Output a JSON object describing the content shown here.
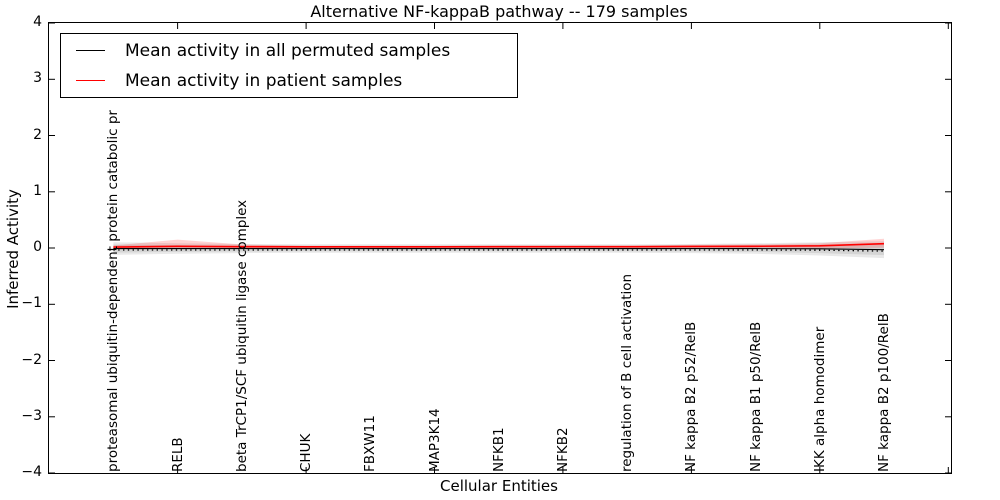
{
  "title": "Alternative NF-kappaB pathway -- 179 samples",
  "axes": {
    "ylabel": "Inferred Activity",
    "xlabel": "Cellular Entities",
    "ytick_values": [
      4,
      3,
      2,
      1,
      0,
      -1,
      -2,
      -3,
      -4
    ],
    "xtick_data_positions": [
      1,
      3,
      5,
      7,
      9,
      11,
      13
    ]
  },
  "legend": {
    "items": [
      {
        "label": "Mean activity in all permuted samples",
        "color": "#000000"
      },
      {
        "label": "Mean activity in patient samples",
        "color": "#ff0000"
      }
    ]
  },
  "colors": {
    "permuted_line": "#000000",
    "patient_line": "#ff0000",
    "permuted_band_outer": "#e9e9e9",
    "permuted_band_inner": "#d5d5d5",
    "patient_band": "rgba(255,0,0,0.17)",
    "spine": "#000000"
  },
  "chart_data": {
    "type": "line",
    "title": "Alternative NF-kappaB pathway -- 179 samples",
    "xlabel": "Cellular Entities",
    "ylabel": "Inferred Activity",
    "ylim": [
      -4,
      4
    ],
    "grid": false,
    "legend_position": "upper left",
    "categories": [
      "proteasomal ubiquitin-dependent protein catabolic pr",
      "RELB",
      "beta TrCP1/SCF ubiquitin ligase complex",
      "CHUK",
      "FBXW11",
      "MAP3K14",
      "NFKB1",
      "NFKB2",
      "regulation of B cell activation",
      "NF kappa B2 p52/RelB",
      "NF kappa B1 p50/RelB",
      "IKK alpha homodimer",
      "NF kappa B2 p100/RelB"
    ],
    "series": [
      {
        "name": "Mean activity in all permuted samples",
        "color": "#000000",
        "values": [
          -0.01,
          -0.01,
          -0.01,
          -0.01,
          -0.01,
          -0.01,
          -0.01,
          -0.01,
          -0.01,
          -0.01,
          -0.01,
          -0.015,
          -0.03
        ],
        "band_halfwidth": [
          0.09,
          0.075,
          0.065,
          0.06,
          0.06,
          0.06,
          0.06,
          0.06,
          0.06,
          0.065,
          0.075,
          0.095,
          0.12
        ]
      },
      {
        "name": "Mean activity in patient samples",
        "color": "#ff0000",
        "values": [
          0.005,
          0.02,
          0.012,
          0.01,
          0.01,
          0.01,
          0.012,
          0.012,
          0.012,
          0.018,
          0.02,
          0.028,
          0.065
        ],
        "band_upper": [
          0.04,
          0.13,
          0.05,
          0.03,
          0.03,
          0.03,
          0.03,
          0.03,
          0.03,
          0.04,
          0.045,
          0.055,
          0.1
        ],
        "band_lower": [
          0.03,
          0.04,
          0.03,
          0.025,
          0.025,
          0.025,
          0.025,
          0.025,
          0.025,
          0.03,
          0.03,
          0.035,
          0.06
        ]
      }
    ]
  }
}
